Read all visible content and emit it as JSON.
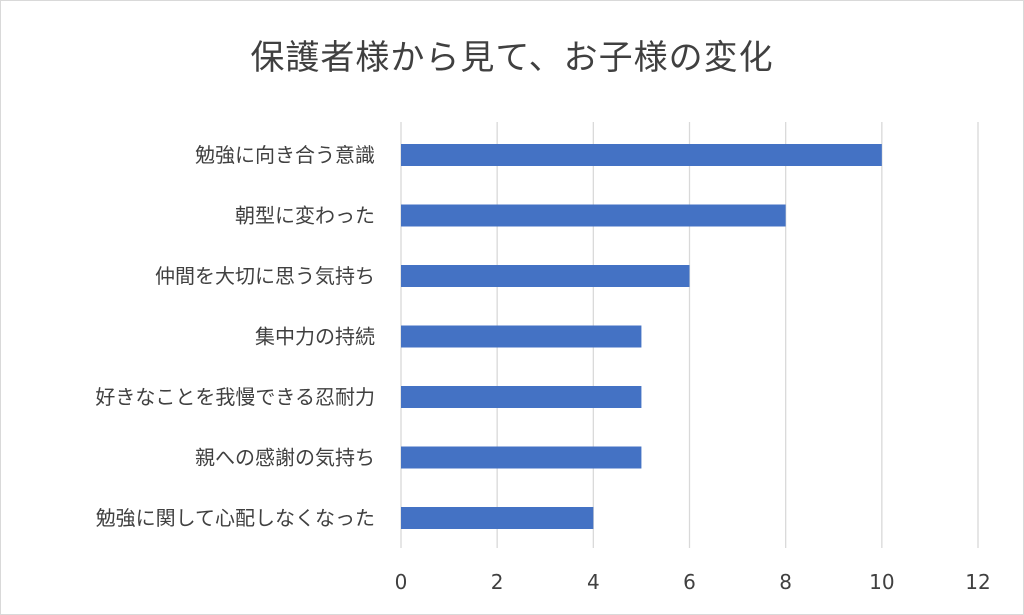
{
  "chart_data": {
    "type": "bar",
    "orientation": "horizontal",
    "title": "保護者様から見て、お子様の変化",
    "categories": [
      "勉強に向き合う意識",
      "朝型に変わった",
      "仲間を大切に思う気持ち",
      "集中力の持続",
      "好きなことを我慢できる忍耐力",
      "親への感謝の気持ち",
      "勉強に関して心配しなくなった"
    ],
    "values": [
      10,
      8,
      6,
      5,
      5,
      5,
      4
    ],
    "xlim": [
      0,
      12
    ],
    "xticks": [
      0,
      2,
      4,
      6,
      8,
      10,
      12
    ],
    "grid": true,
    "bar_color": "#4472c4",
    "grid_color": "#d9d9d9",
    "text_color": "#404040"
  }
}
